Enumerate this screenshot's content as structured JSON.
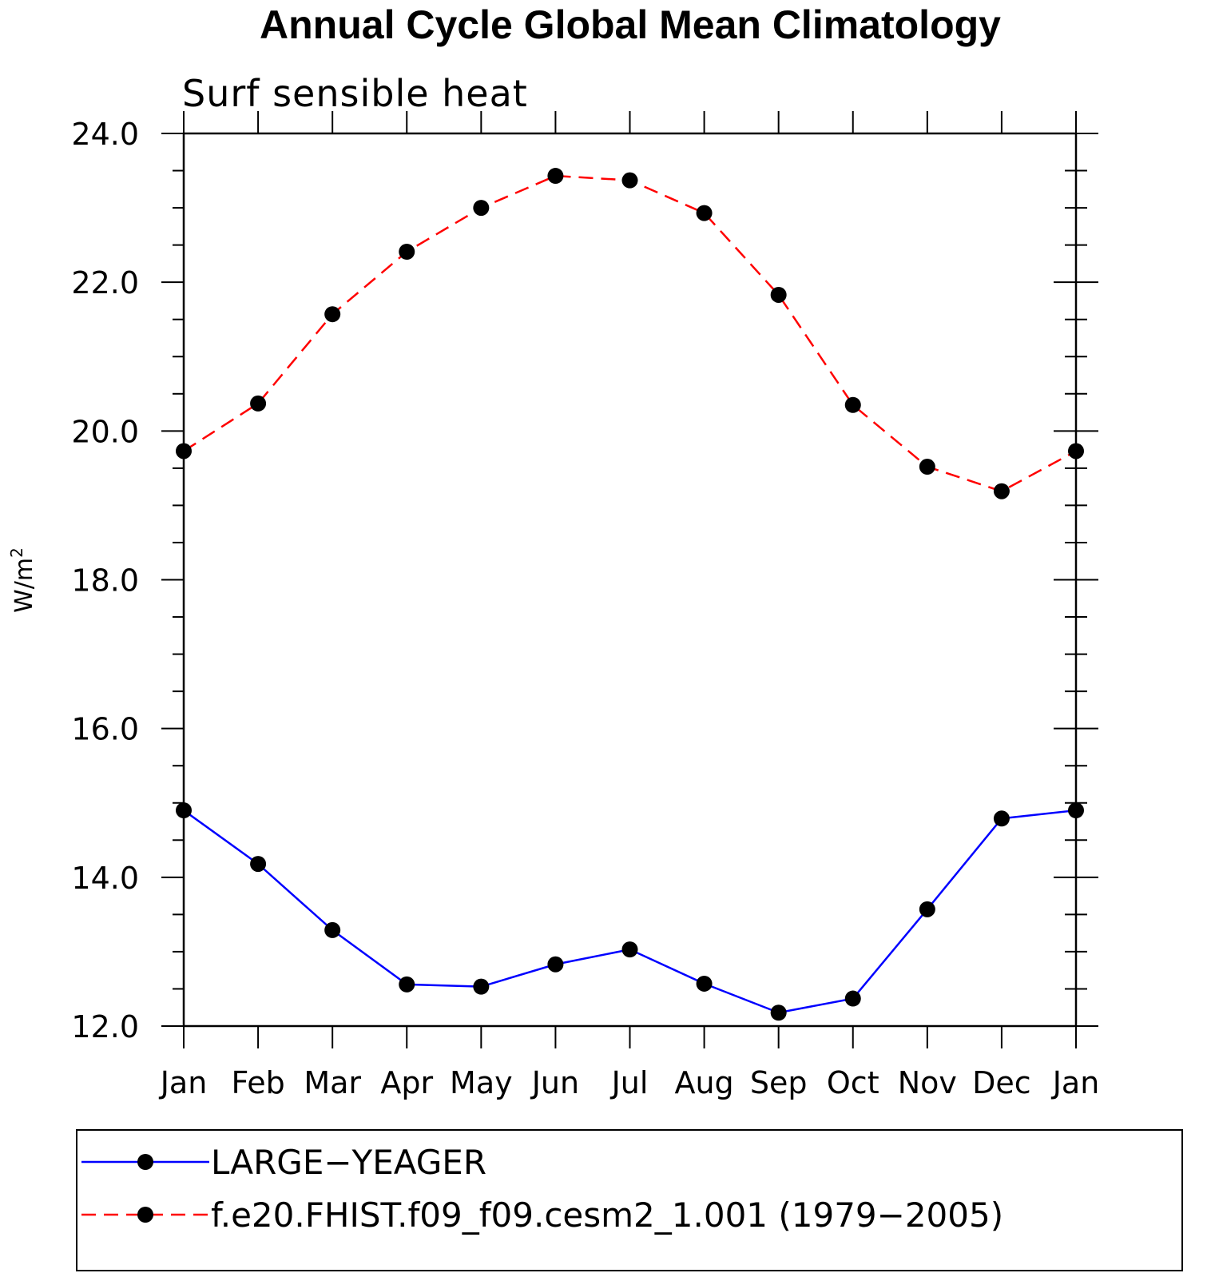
{
  "chart_data": {
    "type": "line",
    "title": "Annual Cycle Global Mean Climatology",
    "subtitle": "Surf sensible heat",
    "xlabel": "",
    "ylabel": "W/m",
    "ylabel_superscript": "2",
    "categories": [
      "Jan",
      "Feb",
      "Mar",
      "Apr",
      "May",
      "Jun",
      "Jul",
      "Aug",
      "Sep",
      "Oct",
      "Nov",
      "Dec",
      "Jan"
    ],
    "ylim": [
      12.0,
      24.0
    ],
    "yticks": [
      "12.0",
      "14.0",
      "16.0",
      "18.0",
      "20.0",
      "22.0",
      "24.0"
    ],
    "grid": false,
    "legend_position": "bottom",
    "series": [
      {
        "name": "LARGE−YEAGER",
        "color": "#0000ff",
        "line_style": "solid",
        "marker": "filled-circle",
        "values": [
          14.9,
          14.18,
          13.29,
          12.56,
          12.53,
          12.83,
          13.03,
          12.57,
          12.18,
          12.37,
          13.57,
          14.79,
          14.9
        ]
      },
      {
        "name": "f.e20.FHIST.f09_f09.cesm2_1.001 (1979−2005)",
        "color": "#ff0000",
        "line_style": "dashed",
        "marker": "filled-circle",
        "values": [
          19.73,
          20.37,
          21.57,
          22.41,
          23.0,
          23.43,
          23.37,
          22.93,
          21.83,
          20.35,
          19.52,
          19.19,
          19.73
        ]
      }
    ]
  }
}
